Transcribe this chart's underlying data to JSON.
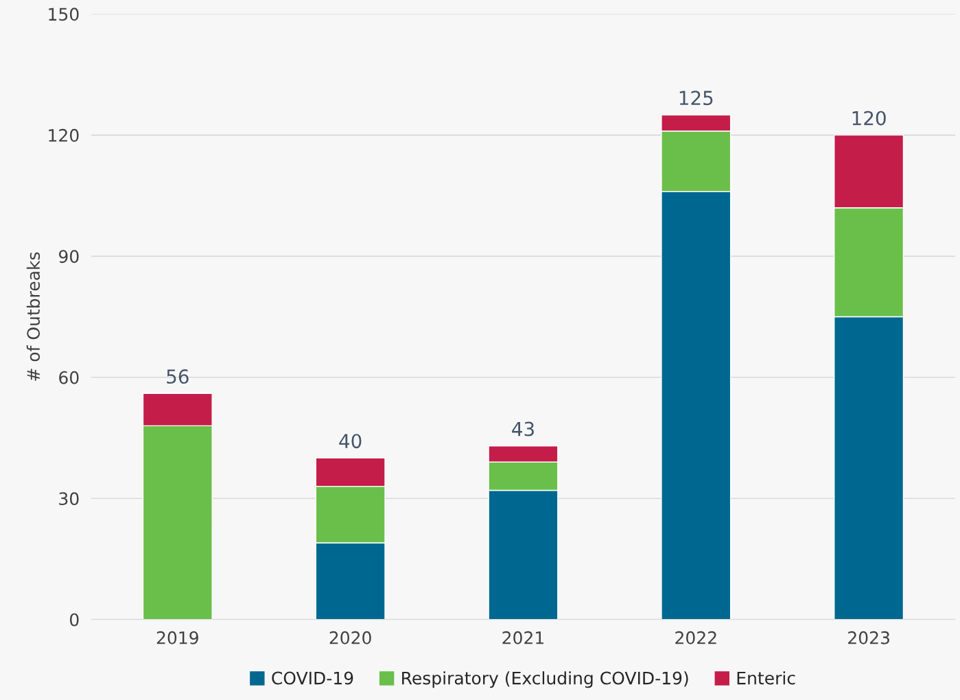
{
  "chart_data": {
    "type": "bar",
    "stacked": true,
    "ylabel": "# of Outbreaks",
    "categories": [
      "2019",
      "2020",
      "2021",
      "2022",
      "2023"
    ],
    "series": [
      {
        "name": "COVID-19",
        "color": "#006890",
        "values": [
          0,
          19,
          32,
          106,
          75
        ]
      },
      {
        "name": "Respiratory (Excluding COVID-19)",
        "color": "#6abf4b",
        "values": [
          48,
          14,
          7,
          15,
          27
        ]
      },
      {
        "name": "Enteric",
        "color": "#c51d4a",
        "values": [
          8,
          7,
          4,
          4,
          18
        ]
      }
    ],
    "totals": [
      "56",
      "40",
      "43",
      "125",
      "120"
    ],
    "ylim": [
      0,
      150
    ],
    "yticks": [
      0,
      30,
      60,
      90,
      120,
      150
    ],
    "grid": "y",
    "legend": "bottom"
  }
}
